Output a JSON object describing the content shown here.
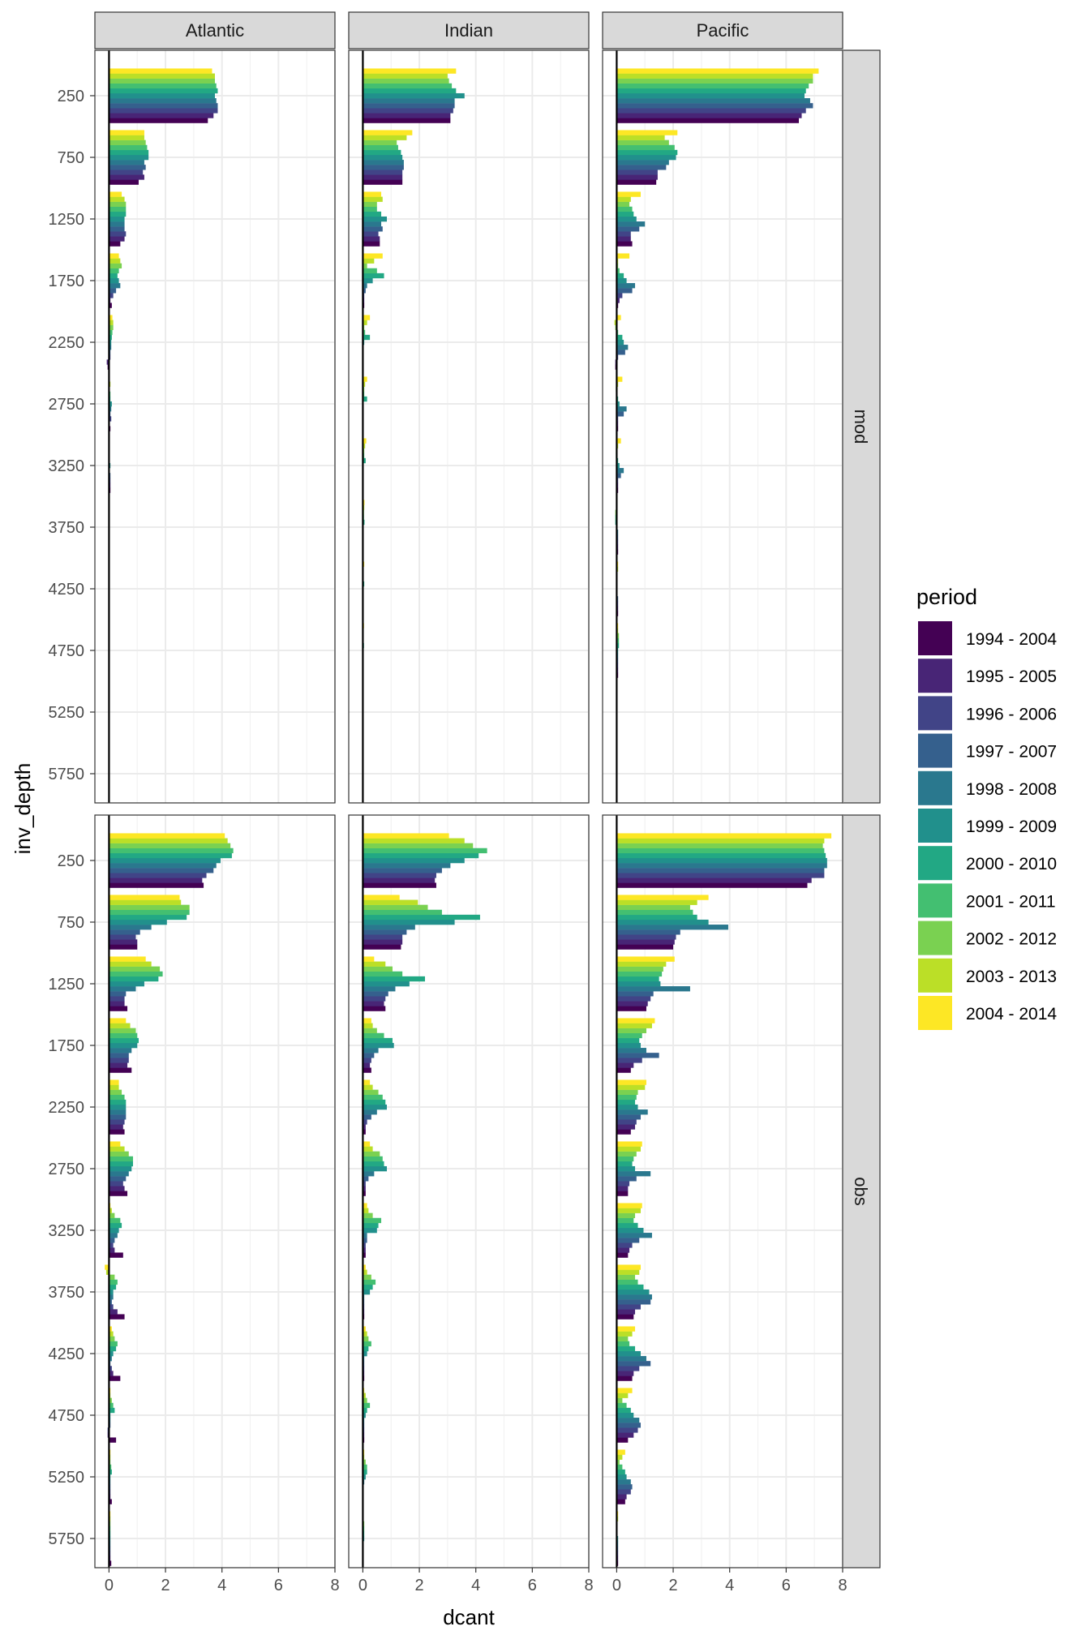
{
  "chart_data": {
    "type": "bar",
    "orientation": "horizontal",
    "facet_columns": [
      "Atlantic",
      "Indian",
      "Pacific"
    ],
    "facet_rows": [
      "mod",
      "obs"
    ],
    "xlabel": "dcant",
    "ylabel": "inv_depth",
    "xlim": [
      -0.5,
      8
    ],
    "x_ticks": [
      "0",
      "2",
      "4",
      "6",
      "8"
    ],
    "x_tick_values": [
      0,
      2,
      4,
      6,
      8
    ],
    "y_ticks": [
      "250",
      "750",
      "1250",
      "1750",
      "2250",
      "2750",
      "3250",
      "3750",
      "4250",
      "4750",
      "5250",
      "5750"
    ],
    "y_range": [
      6000,
      0
    ],
    "legend": {
      "title": "period",
      "position": "right",
      "labels": [
        "1994 - 2004",
        "1995 - 2005",
        "1996 - 2006",
        "1997 - 2007",
        "1998 - 2008",
        "1999 - 2009",
        "2000 - 2010",
        "2001 - 2011",
        "2002 - 2012",
        "2003 - 2013",
        "2004 - 2014"
      ],
      "colors": [
        "#440154",
        "#482576",
        "#414487",
        "#35608D",
        "#2A788E",
        "#21908C",
        "#22A884",
        "#43BF71",
        "#7AD151",
        "#BBDF27",
        "#FDE725"
      ]
    },
    "grid": true,
    "panels": [
      {
        "column": "Atlantic",
        "row": "mod",
        "values": [
          [
            3.5,
            3.7,
            3.85,
            3.85,
            3.8,
            3.75,
            3.85,
            3.8,
            3.75,
            3.75,
            3.65
          ],
          [
            1.05,
            1.25,
            1.2,
            1.3,
            1.25,
            1.4,
            1.4,
            1.35,
            1.3,
            1.25,
            1.25
          ],
          [
            0.4,
            0.55,
            0.6,
            0.55,
            0.55,
            0.55,
            0.6,
            0.6,
            0.6,
            0.55,
            0.45
          ],
          [
            0.1,
            0.05,
            0.15,
            0.25,
            0.4,
            0.35,
            0.3,
            0.35,
            0.45,
            0.4,
            0.35
          ],
          [
            -0.05,
            -0.08,
            0.05,
            0.05,
            0.08,
            0.08,
            0.1,
            0.12,
            0.15,
            0.15,
            0.12
          ],
          [
            0.05,
            0.03,
            0.08,
            0.05,
            0.08,
            0.1,
            0.05,
            0.05,
            0.02,
            0.05,
            0.02
          ],
          [
            0.05,
            0.05,
            0.05,
            0.05,
            0.03,
            0.05,
            0.02,
            0.02,
            0.02,
            0.03,
            0.02
          ],
          [
            0.03,
            0.03,
            0.03,
            0.03,
            0.03,
            0.03,
            0.03,
            0.03,
            0.03,
            0.03,
            0.02
          ],
          [
            0.02,
            0.02,
            0.02,
            0.02,
            0.02,
            0.02,
            0.02,
            0.02,
            0.02,
            0.02,
            0.02
          ],
          [
            0.01,
            0.01,
            0.01,
            0.01,
            0.01,
            0.01,
            0.01,
            0.01,
            0.01,
            0.01,
            0.01
          ],
          [
            0.01,
            0.01,
            0.01,
            0.01,
            0.01,
            0.01,
            0.01,
            0.01,
            0.01,
            0.01,
            0.01
          ],
          [
            0.01,
            0.01,
            0.01,
            0.01,
            0.01,
            0.01,
            0.01,
            0.01,
            0.01,
            0.01,
            0.01
          ]
        ]
      },
      {
        "column": "Indian",
        "row": "mod",
        "values": [
          [
            3.1,
            3.1,
            3.2,
            3.25,
            3.25,
            3.6,
            3.3,
            3.15,
            3.05,
            3.0,
            3.3
          ],
          [
            1.4,
            1.4,
            1.4,
            1.45,
            1.45,
            1.4,
            1.35,
            1.25,
            1.2,
            1.55,
            1.75
          ],
          [
            0.6,
            0.6,
            0.55,
            0.7,
            0.65,
            0.85,
            0.65,
            0.5,
            0.5,
            0.7,
            0.65
          ],
          [
            0.05,
            0.05,
            0.05,
            0.1,
            0.15,
            0.35,
            0.75,
            0.5,
            0.15,
            0.4,
            0.7
          ],
          [
            0.03,
            0.03,
            0.03,
            0.03,
            0.03,
            0.05,
            0.25,
            0.08,
            0.05,
            0.15,
            0.25
          ],
          [
            0.03,
            0.03,
            0.03,
            0.03,
            0.03,
            0.03,
            0.15,
            0.05,
            0.05,
            0.08,
            0.15
          ],
          [
            0.02,
            0.02,
            0.02,
            0.02,
            0.02,
            0.02,
            0.1,
            0.05,
            0.05,
            0.08,
            0.12
          ],
          [
            0.02,
            0.02,
            0.02,
            0.02,
            0.02,
            0.02,
            0.06,
            0.04,
            0.04,
            0.05,
            0.06
          ],
          [
            0.02,
            0.02,
            0.02,
            0.02,
            0.02,
            0.02,
            0.05,
            0.03,
            0.03,
            0.03,
            0.05
          ],
          [
            0.01,
            0.01,
            0.01,
            0.01,
            0.01,
            0.01,
            0.04,
            0.03,
            0.03,
            0.03,
            0.04
          ],
          [
            0.01,
            0.01,
            0.01,
            0.01,
            0.01,
            0.01,
            0.03,
            0.02,
            0.02,
            0.02,
            0.03
          ],
          [
            0.01,
            0.01,
            0.01,
            0.01,
            0.01,
            0.01,
            0.02,
            0.02,
            0.02,
            0.02,
            0.02
          ]
        ]
      },
      {
        "column": "Pacific",
        "row": "mod",
        "values": [
          [
            6.45,
            6.55,
            6.7,
            6.95,
            6.85,
            6.65,
            6.7,
            6.8,
            6.95,
            6.95,
            7.15
          ],
          [
            1.4,
            1.45,
            1.45,
            1.75,
            1.85,
            2.1,
            2.15,
            2.05,
            1.85,
            1.7,
            2.15
          ],
          [
            0.55,
            0.5,
            0.5,
            0.8,
            1.0,
            0.7,
            0.6,
            0.55,
            0.45,
            0.5,
            0.85
          ],
          [
            0.05,
            0.1,
            0.2,
            0.55,
            0.65,
            0.35,
            0.25,
            0.1,
            0.05,
            0.05,
            0.45
          ],
          [
            -0.05,
            -0.05,
            0.05,
            0.3,
            0.4,
            0.25,
            0.2,
            0.05,
            -0.05,
            -0.08,
            0.15
          ],
          [
            0.05,
            0.05,
            0.05,
            0.25,
            0.35,
            0.1,
            0.05,
            0.03,
            -0.03,
            0.05,
            0.2
          ],
          [
            0.05,
            0.05,
            0.05,
            0.15,
            0.25,
            0.1,
            0.05,
            -0.03,
            -0.03,
            0.05,
            0.15
          ],
          [
            0.05,
            0.05,
            0.05,
            0.05,
            0.05,
            0.03,
            -0.05,
            -0.05,
            -0.05,
            0.03,
            0.03
          ],
          [
            0.05,
            0.05,
            0.05,
            0.05,
            0.03,
            0.03,
            0.03,
            0.03,
            0.03,
            0.05,
            0.05
          ],
          [
            0.05,
            0.05,
            0.05,
            0.05,
            0.05,
            0.05,
            0.08,
            0.08,
            0.08,
            0.05,
            0.05
          ],
          [
            0.02,
            0.02,
            0.02,
            0.02,
            0.02,
            0.02,
            0.03,
            0.03,
            0.03,
            0.03,
            0.03
          ],
          [
            0.02,
            0.02,
            0.02,
            0.02,
            0.02,
            0.02,
            0.02,
            0.02,
            0.02,
            0.02,
            0.02
          ]
        ]
      },
      {
        "column": "Atlantic",
        "row": "obs",
        "values": [
          [
            3.35,
            3.3,
            3.45,
            3.7,
            3.8,
            3.95,
            4.35,
            4.4,
            4.3,
            4.2,
            4.1
          ],
          [
            1.0,
            1.0,
            0.95,
            1.1,
            1.5,
            2.05,
            2.75,
            2.85,
            2.85,
            2.55,
            2.5
          ],
          [
            0.65,
            0.55,
            0.55,
            0.6,
            0.95,
            1.25,
            1.75,
            1.9,
            1.8,
            1.5,
            1.3
          ],
          [
            0.8,
            0.65,
            0.7,
            0.7,
            0.8,
            1.0,
            1.05,
            1.0,
            0.95,
            0.75,
            0.6
          ],
          [
            0.55,
            0.5,
            0.55,
            0.6,
            0.6,
            0.6,
            0.6,
            0.55,
            0.45,
            0.35,
            0.35
          ],
          [
            0.65,
            0.55,
            0.5,
            0.6,
            0.7,
            0.8,
            0.85,
            0.85,
            0.7,
            0.55,
            0.4
          ],
          [
            0.5,
            0.2,
            0.15,
            0.2,
            0.3,
            0.35,
            0.45,
            0.4,
            0.2,
            0.1,
            0.05
          ],
          [
            0.55,
            0.3,
            0.15,
            0.1,
            0.15,
            0.15,
            0.25,
            0.3,
            0.2,
            -0.1,
            -0.15
          ],
          [
            0.4,
            0.15,
            0.1,
            0.05,
            0.1,
            0.15,
            0.25,
            0.3,
            0.2,
            0.15,
            0.1
          ],
          [
            0.25,
            -0.05,
            -0.05,
            0.05,
            0.05,
            0.05,
            0.2,
            0.15,
            0.1,
            0.05,
            0.05
          ],
          [
            0.1,
            0.05,
            0.05,
            0.05,
            0.05,
            0.05,
            0.1,
            0.08,
            0.05,
            0.05,
            0.05
          ],
          [
            0.08,
            0.05,
            0.05,
            0.05,
            0.05,
            0.05,
            0.05,
            0.05,
            0.05,
            0.05,
            0.05
          ]
        ]
      },
      {
        "column": "Indian",
        "row": "obs",
        "values": [
          [
            2.6,
            2.55,
            2.6,
            2.8,
            3.1,
            3.6,
            4.1,
            4.4,
            3.9,
            3.6,
            3.05
          ],
          [
            1.35,
            1.4,
            1.4,
            1.55,
            1.85,
            3.25,
            4.15,
            2.8,
            2.3,
            1.95,
            1.3
          ],
          [
            0.8,
            0.75,
            0.8,
            0.9,
            1.15,
            1.65,
            2.2,
            1.4,
            1.05,
            0.8,
            0.4
          ],
          [
            0.3,
            0.25,
            0.3,
            0.4,
            0.55,
            1.1,
            1.05,
            0.75,
            0.5,
            0.35,
            0.3
          ],
          [
            0.1,
            0.1,
            0.15,
            0.3,
            0.5,
            0.85,
            0.8,
            0.7,
            0.55,
            0.35,
            0.25
          ],
          [
            0.1,
            0.1,
            0.1,
            0.2,
            0.4,
            0.85,
            0.75,
            0.7,
            0.6,
            0.35,
            0.25
          ],
          [
            0.1,
            0.1,
            0.1,
            0.15,
            0.15,
            0.5,
            0.55,
            0.65,
            0.35,
            0.2,
            0.15
          ],
          [
            0.05,
            0.05,
            0.05,
            0.05,
            0.05,
            0.25,
            0.35,
            0.45,
            0.3,
            0.15,
            0.1
          ],
          [
            0.05,
            0.05,
            0.05,
            0.05,
            0.05,
            0.15,
            0.2,
            0.3,
            0.2,
            0.15,
            0.1
          ],
          [
            0.05,
            0.05,
            0.05,
            0.05,
            0.05,
            0.1,
            0.15,
            0.25,
            0.15,
            0.1,
            0.05
          ],
          [
            0.02,
            0.02,
            0.02,
            0.02,
            0.05,
            0.1,
            0.15,
            0.15,
            0.1,
            0.05,
            0.05
          ],
          [
            0.02,
            0.02,
            0.02,
            0.02,
            0.02,
            0.05,
            0.05,
            0.05,
            0.05,
            0.02,
            0.02
          ]
        ]
      },
      {
        "column": "Pacific",
        "row": "obs",
        "values": [
          [
            6.75,
            6.9,
            7.35,
            7.35,
            7.45,
            7.45,
            7.4,
            7.35,
            7.3,
            7.35,
            7.6
          ],
          [
            2.0,
            2.05,
            2.1,
            2.25,
            3.95,
            3.25,
            2.85,
            2.7,
            2.6,
            2.85,
            3.25
          ],
          [
            1.05,
            1.1,
            1.2,
            1.3,
            2.6,
            1.55,
            1.5,
            1.6,
            1.65,
            1.75,
            2.05
          ],
          [
            0.5,
            0.6,
            0.9,
            1.5,
            1.05,
            0.85,
            0.8,
            0.9,
            1.05,
            1.25,
            1.35
          ],
          [
            0.5,
            0.65,
            0.7,
            0.85,
            1.1,
            0.75,
            0.65,
            0.7,
            0.75,
            1.0,
            1.05
          ],
          [
            0.4,
            0.4,
            0.45,
            0.7,
            1.2,
            0.65,
            0.55,
            0.6,
            0.7,
            0.85,
            0.9
          ],
          [
            0.4,
            0.45,
            0.55,
            0.8,
            1.25,
            0.95,
            0.75,
            0.6,
            0.65,
            0.85,
            0.9
          ],
          [
            0.6,
            0.65,
            0.85,
            1.2,
            1.25,
            1.15,
            0.95,
            0.75,
            0.65,
            0.8,
            0.85
          ],
          [
            0.55,
            0.6,
            0.8,
            1.2,
            1.05,
            0.85,
            0.65,
            0.45,
            0.4,
            0.55,
            0.65
          ],
          [
            0.4,
            0.6,
            0.75,
            0.85,
            0.8,
            0.6,
            0.5,
            0.35,
            0.2,
            0.4,
            0.55
          ],
          [
            0.3,
            0.35,
            0.5,
            0.55,
            0.5,
            0.35,
            0.3,
            0.2,
            0.1,
            0.2,
            0.3
          ],
          [
            0.05,
            0.05,
            0.05,
            0.05,
            0.05,
            0.05,
            0.02,
            0.02,
            0.02,
            0.05,
            0.05
          ]
        ]
      }
    ]
  }
}
